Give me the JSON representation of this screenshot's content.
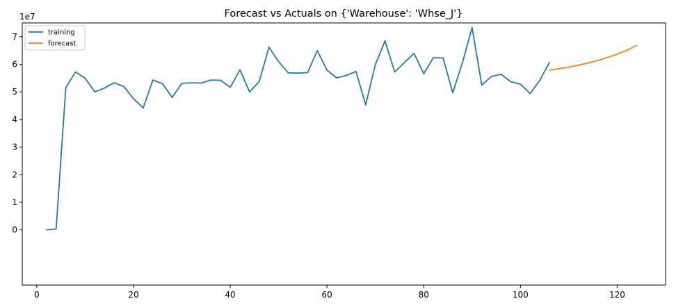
{
  "chart_data": {
    "type": "line",
    "title": "Forecast vs Actuals on {'Warehouse': 'Whse_J'}",
    "xlabel": "",
    "ylabel": "",
    "y_offset_text": "1e7",
    "xlim": [
      -3,
      130
    ],
    "ylim": [
      -2.0,
      7.5
    ],
    "x_ticks": [
      0,
      20,
      40,
      60,
      80,
      100,
      120
    ],
    "y_ticks": [
      0,
      1,
      2,
      3,
      4,
      5,
      6,
      7
    ],
    "grid": false,
    "legend_position": "upper-left",
    "series": [
      {
        "name": "training",
        "color": "#1f77b4",
        "x": [
          2,
          4,
          6,
          8,
          10,
          12,
          14,
          16,
          18,
          20,
          22,
          24,
          26,
          28,
          30,
          32,
          34,
          36,
          38,
          40,
          42,
          44,
          46,
          48,
          50,
          52,
          54,
          56,
          58,
          60,
          62,
          64,
          66,
          68,
          70,
          72,
          74,
          76,
          78,
          80,
          82,
          84,
          86,
          88,
          90,
          92,
          94,
          96,
          98,
          100,
          102,
          104,
          106
        ],
        "y": [
          0.0,
          0.03,
          5.15,
          5.72,
          5.5,
          5.0,
          5.14,
          5.33,
          5.2,
          4.75,
          4.42,
          5.43,
          5.3,
          4.8,
          5.31,
          5.33,
          5.32,
          5.43,
          5.42,
          5.17,
          5.8,
          5.0,
          5.38,
          6.62,
          6.1,
          5.69,
          5.68,
          5.7,
          6.5,
          5.79,
          5.51,
          5.6,
          5.74,
          4.53,
          5.99,
          6.85,
          5.72,
          6.06,
          6.4,
          5.66,
          6.24,
          6.23,
          4.97,
          6.06,
          7.33,
          5.25,
          5.56,
          5.64,
          5.37,
          5.28,
          4.94,
          5.42,
          6.07
        ]
      },
      {
        "name": "forecast",
        "color": "#ff7f0e",
        "x": [
          106,
          108,
          110,
          112,
          114,
          116,
          118,
          120,
          122,
          124
        ],
        "y": [
          5.79,
          5.84,
          5.9,
          5.97,
          6.05,
          6.14,
          6.25,
          6.37,
          6.51,
          6.68
        ]
      }
    ]
  }
}
